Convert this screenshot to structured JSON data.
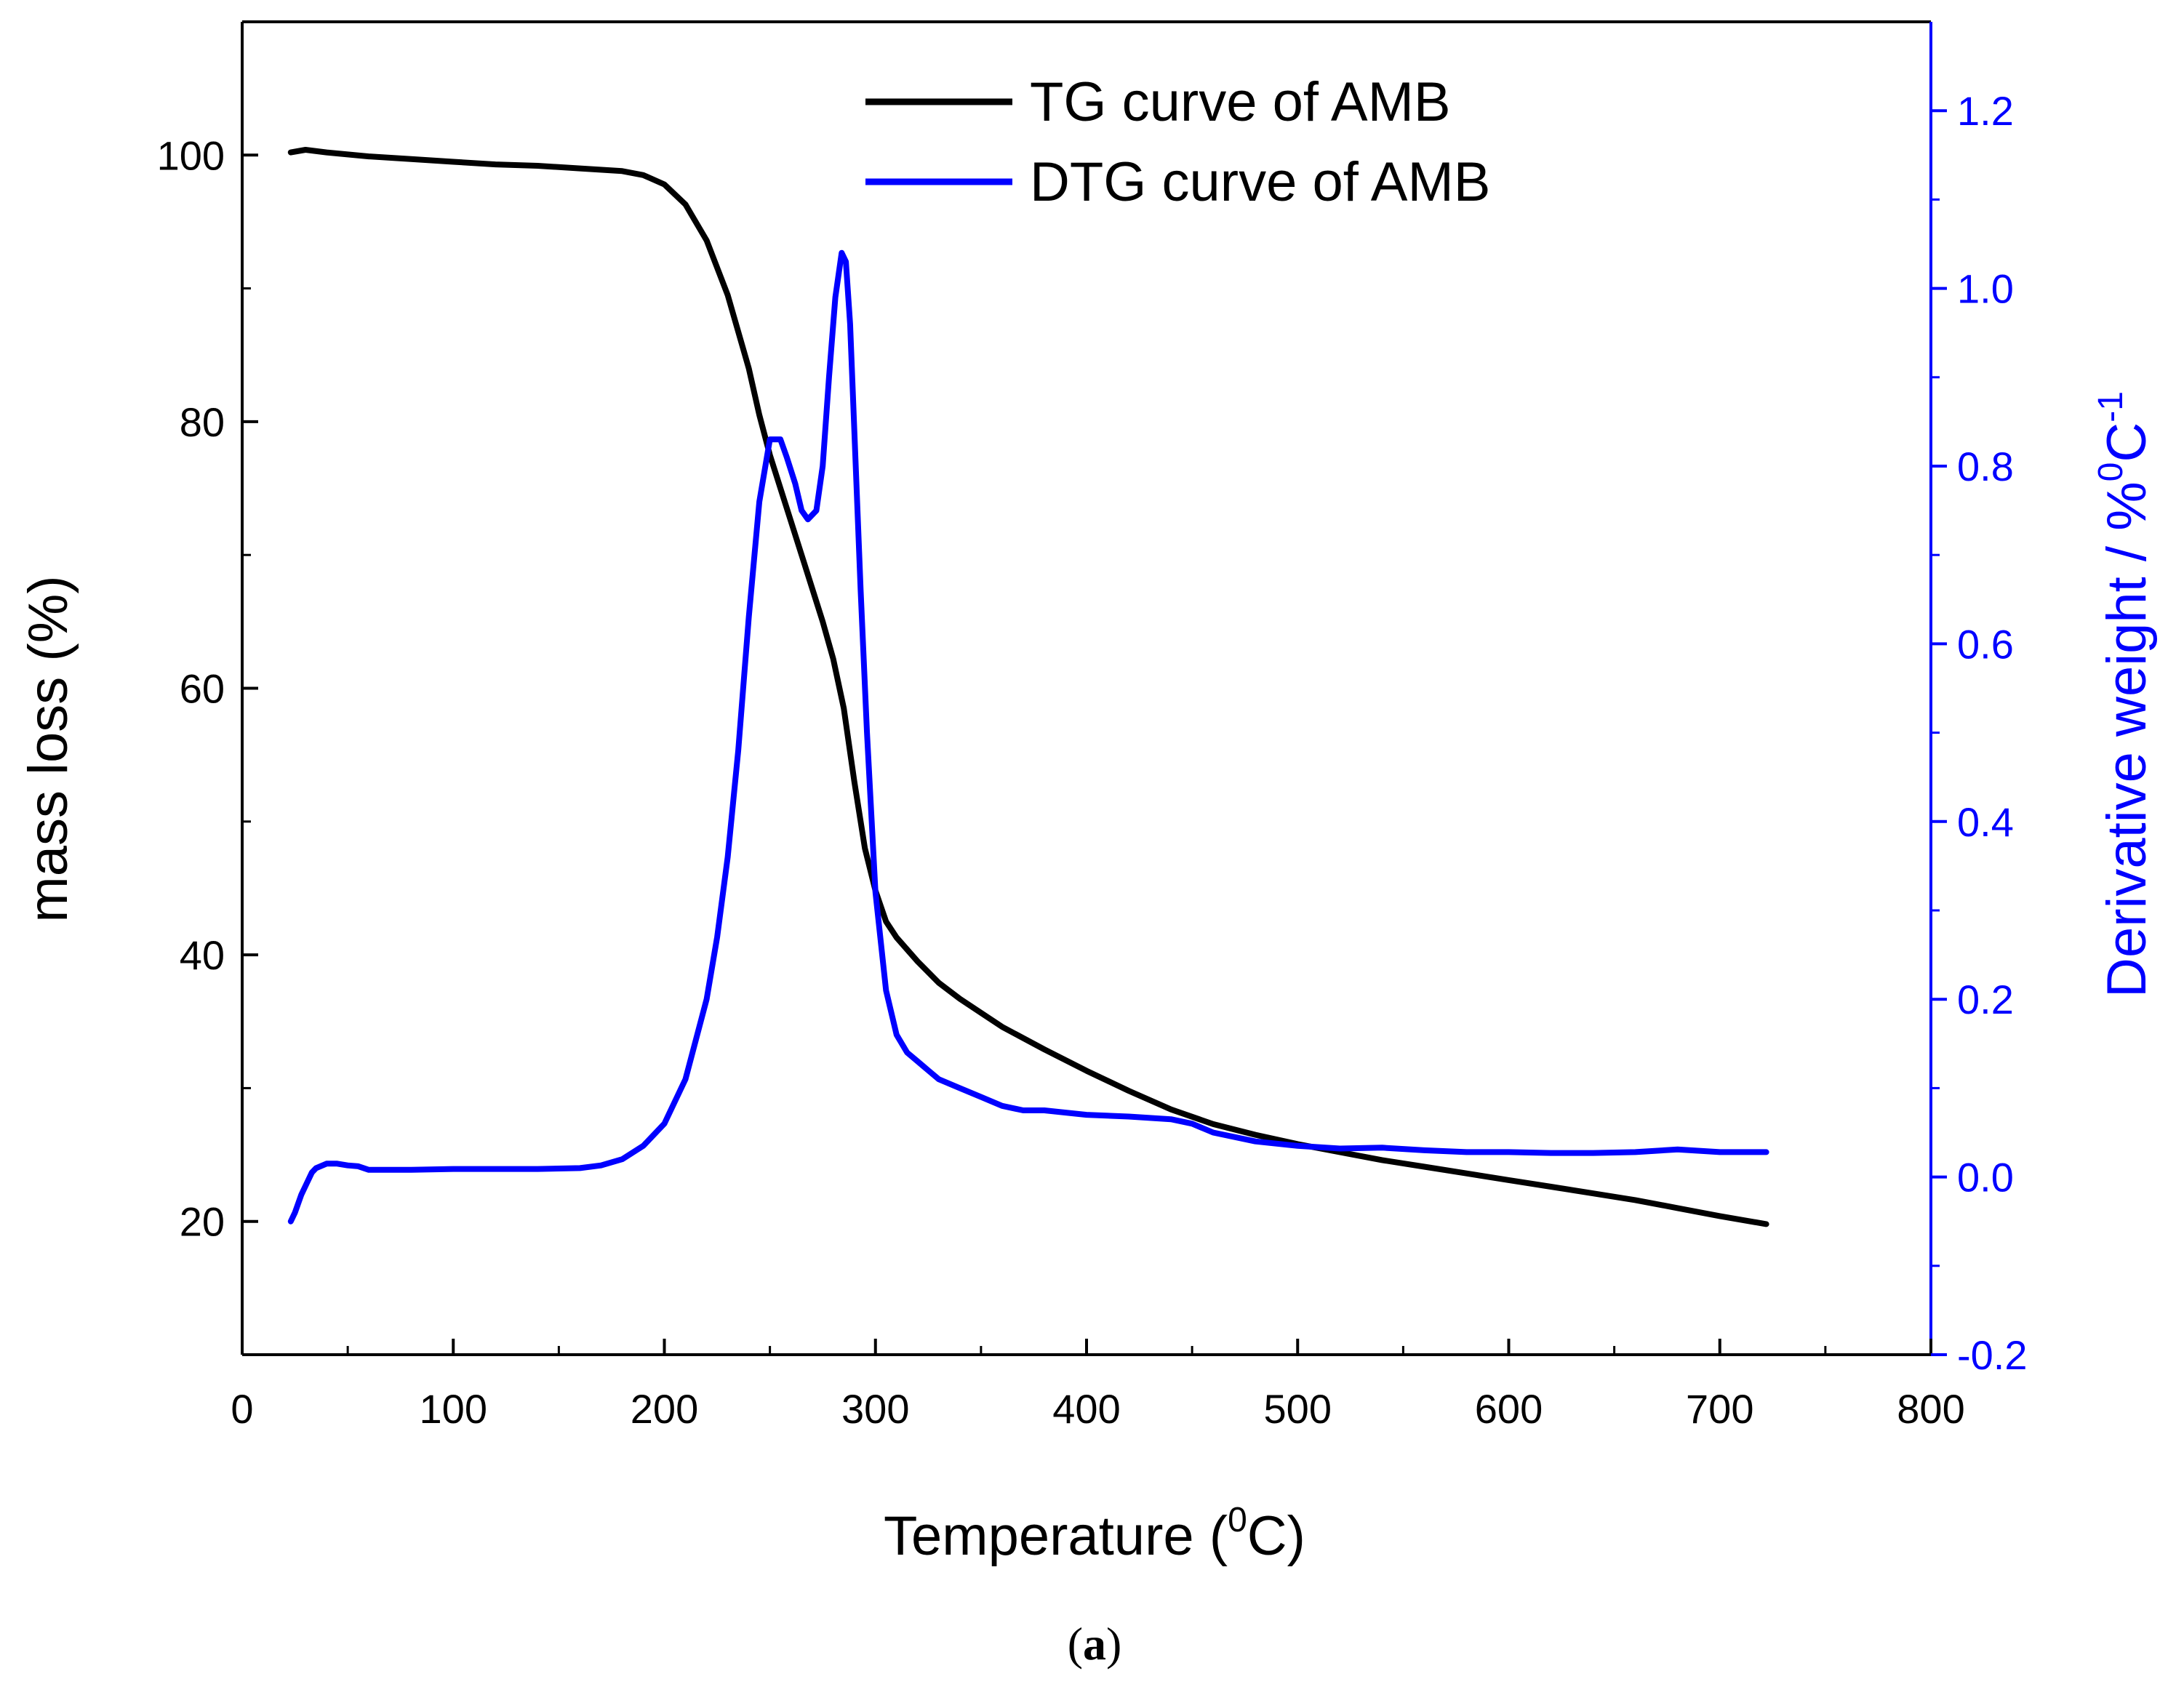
{
  "chart_data": {
    "type": "line",
    "title": "",
    "caption": "(a)",
    "caption_parts": {
      "open": "(",
      "letter": "a",
      "close": ")"
    },
    "xlabel": {
      "text": "Temperature (",
      "sup": "0",
      "suffix": "C)"
    },
    "ylabel_left": "mass loss (%)",
    "ylabel_right": {
      "text": "Derivative weight / %",
      "sup1": "0",
      "mid": "C",
      "sup2": "-1"
    },
    "xlim": [
      0,
      800
    ],
    "ylim_left": [
      10,
      110
    ],
    "ylim_right": [
      -0.2,
      1.3
    ],
    "x_ticks": [
      "0",
      "100",
      "200",
      "300",
      "400",
      "500",
      "600",
      "700",
      "800"
    ],
    "y_left_ticks": [
      "20",
      "40",
      "60",
      "80",
      "100"
    ],
    "y_right_ticks": [
      "-0.2",
      "0.0",
      "0.2",
      "0.4",
      "0.6",
      "0.8",
      "1.0",
      "1.2"
    ],
    "colors": {
      "tg": "#000000",
      "dtg": "#0000ff",
      "axis": "#000000",
      "right_axis": "#0000ff"
    },
    "series": [
      {
        "name": "TG curve of AMB",
        "axis": "left",
        "x": [
          23,
          30,
          40,
          60,
          80,
          100,
          120,
          140,
          160,
          180,
          190,
          200,
          210,
          220,
          230,
          240,
          245,
          250,
          255,
          260,
          265,
          270,
          275,
          280,
          285,
          290,
          295,
          300,
          305,
          310,
          320,
          330,
          340,
          360,
          380,
          400,
          420,
          440,
          460,
          480,
          500,
          520,
          540,
          560,
          580,
          600,
          620,
          640,
          660,
          680,
          700,
          722
        ],
        "values": [
          100.2,
          100.4,
          100.2,
          99.9,
          99.7,
          99.5,
          99.3,
          99.2,
          99.0,
          98.8,
          98.5,
          97.8,
          96.3,
          93.6,
          89.5,
          84.0,
          80.5,
          77.5,
          75.0,
          72.5,
          70.0,
          67.5,
          65.0,
          62.2,
          58.5,
          53.0,
          48.0,
          44.8,
          42.5,
          41.3,
          39.5,
          37.9,
          36.7,
          34.6,
          32.9,
          31.3,
          29.8,
          28.4,
          27.3,
          26.5,
          25.8,
          25.2,
          24.6,
          24.1,
          23.6,
          23.1,
          22.6,
          22.1,
          21.6,
          21.0,
          20.4,
          19.8
        ]
      },
      {
        "name": "DTG curve of AMB",
        "axis": "right",
        "x": [
          23,
          25,
          28,
          30,
          33,
          35,
          40,
          45,
          50,
          55,
          60,
          80,
          100,
          120,
          140,
          160,
          170,
          180,
          190,
          200,
          210,
          220,
          225,
          230,
          235,
          240,
          245,
          250,
          255,
          258,
          262,
          265,
          268,
          272,
          275,
          278,
          281,
          284,
          286,
          288,
          290,
          293,
          296,
          300,
          305,
          310,
          315,
          320,
          325,
          330,
          340,
          350,
          360,
          370,
          380,
          400,
          420,
          440,
          450,
          460,
          480,
          500,
          520,
          540,
          560,
          580,
          600,
          620,
          640,
          660,
          680,
          700,
          722
        ],
        "values": [
          -0.05,
          -0.04,
          -0.02,
          -0.01,
          0.005,
          0.01,
          0.015,
          0.015,
          0.013,
          0.012,
          0.008,
          0.008,
          0.009,
          0.009,
          0.009,
          0.01,
          0.013,
          0.02,
          0.035,
          0.06,
          0.11,
          0.2,
          0.27,
          0.36,
          0.48,
          0.63,
          0.76,
          0.83,
          0.83,
          0.81,
          0.78,
          0.75,
          0.74,
          0.75,
          0.8,
          0.9,
          0.99,
          1.04,
          1.03,
          0.96,
          0.84,
          0.66,
          0.5,
          0.32,
          0.21,
          0.16,
          0.14,
          0.13,
          0.12,
          0.11,
          0.1,
          0.09,
          0.08,
          0.075,
          0.075,
          0.07,
          0.068,
          0.065,
          0.06,
          0.05,
          0.04,
          0.035,
          0.032,
          0.033,
          0.03,
          0.028,
          0.028,
          0.027,
          0.027,
          0.028,
          0.031,
          0.028,
          0.028
        ]
      }
    ],
    "legend": {
      "position": "top-center",
      "entries": [
        "TG curve of AMB",
        "DTG curve of AMB"
      ]
    },
    "grid": false
  }
}
